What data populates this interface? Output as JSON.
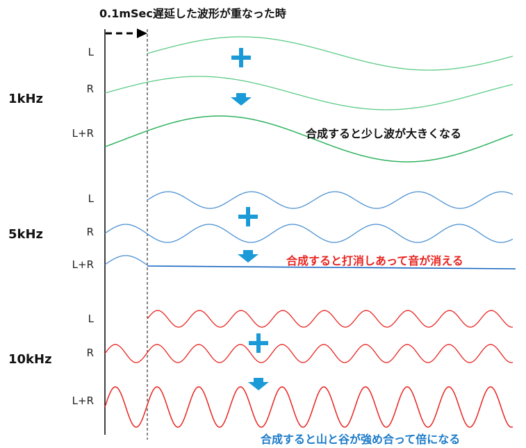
{
  "title": "0.1mSec遅延した波形が重なった時",
  "colors": {
    "green": "#5acb85",
    "green_sum": "#2db25e",
    "blue": "#4a8fd0",
    "blue_sum": "#1565c0",
    "red": "#e8231f",
    "accent": "#1a9ad6"
  },
  "sections": [
    {
      "freq": "1kHz",
      "labels": {
        "l": "L",
        "r": "R",
        "sum": "L+R"
      },
      "note": "合成すると少し波が大きくなる",
      "note_color": "#111111"
    },
    {
      "freq": "5kHz",
      "labels": {
        "l": "L",
        "r": "R",
        "sum": "L+R"
      },
      "note": "合成すると打消しあって音が消える",
      "note_color": "#e8231f"
    },
    {
      "freq": "10kHz",
      "labels": {
        "l": "L",
        "r": "R",
        "sum": "L+R"
      },
      "note": "合成すると山と谷が強め合って倍になる",
      "note_color": "#1a7ac8"
    }
  ],
  "icons": {
    "plus": "plus-icon",
    "arrow": "down-arrow-icon",
    "delay": "dashed-right-arrow-icon"
  }
}
